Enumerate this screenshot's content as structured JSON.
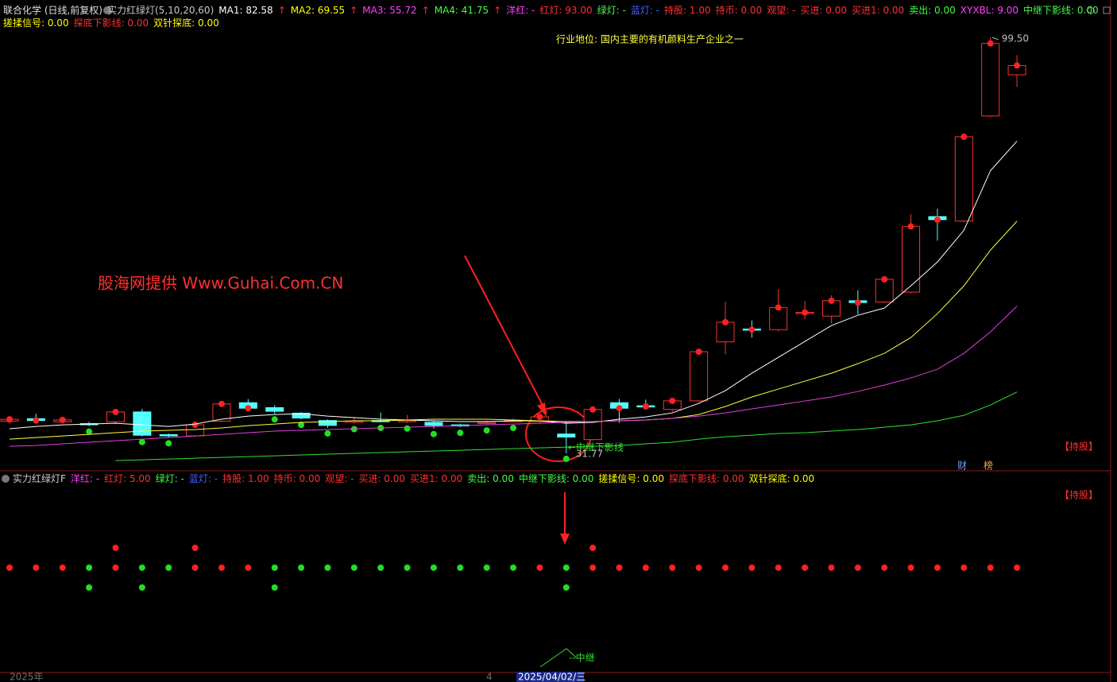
{
  "header": {
    "line1": [
      {
        "text": "联合化学 (日线,前复权)",
        "color": "#e0e0e0"
      },
      {
        "text": "实力红绿灯(5,10,20,60)",
        "color": "#c8c8c8"
      },
      {
        "text": "MA1: 82.58",
        "color": "#ffffff"
      },
      {
        "text": "↑",
        "color": "#ff3030"
      },
      {
        "text": "MA2: 69.55",
        "color": "#ffff00"
      },
      {
        "text": "↑",
        "color": "#ff3030"
      },
      {
        "text": "MA3: 55.72",
        "color": "#ff40ff"
      },
      {
        "text": "↑",
        "color": "#ff3030"
      },
      {
        "text": "MA4: 41.75",
        "color": "#40ff40"
      },
      {
        "text": "↑",
        "color": "#ff3030"
      },
      {
        "text": "洋红: -",
        "color": "#ff40ff"
      },
      {
        "text": "红灯: 93.00",
        "color": "#ff3030"
      },
      {
        "text": "绿灯: -",
        "color": "#40ff40"
      },
      {
        "text": "蓝灯: -",
        "color": "#4060ff"
      },
      {
        "text": "持股: 1.00",
        "color": "#ff3030"
      },
      {
        "text": "持币: 0.00",
        "color": "#ff3030"
      },
      {
        "text": "观望: -",
        "color": "#ff3030"
      },
      {
        "text": "买进: 0.00",
        "color": "#ff3030"
      },
      {
        "text": "买进1: 0.00",
        "color": "#ff3030"
      },
      {
        "text": "卖出: 0.00",
        "color": "#40ff40"
      },
      {
        "text": "XYXBL: 9.00",
        "color": "#ff40ff"
      },
      {
        "text": "中继下影线: 0.00",
        "color": "#40ff40"
      }
    ],
    "line2": [
      {
        "text": "搓揉信号: 0.00",
        "color": "#ffff00"
      },
      {
        "text": "探底下影线: 0.00",
        "color": "#ff3030"
      },
      {
        "text": "双针探底: 0.00",
        "color": "#ffff00"
      }
    ]
  },
  "chart_data": {
    "type": "candlestick",
    "categories": [
      null,
      null,
      null,
      null,
      null,
      null,
      null,
      null,
      null,
      null,
      null,
      null,
      null,
      null,
      null,
      null,
      null,
      null,
      null,
      null,
      null,
      "2025/04/02/三",
      null,
      null,
      null,
      null,
      null,
      null,
      null,
      null,
      null,
      null,
      null,
      null,
      null,
      null,
      null,
      null,
      null
    ],
    "open": [
      37.0,
      37.4,
      36.9,
      36.6,
      36.9,
      38.5,
      34.8,
      34.6,
      37.0,
      40.0,
      39.2,
      38.3,
      37.1,
      36.9,
      37.1,
      37.0,
      36.8,
      36.4,
      36.6,
      37.0,
      36.9,
      34.9,
      34.0,
      40.0,
      39.5,
      38.9,
      40.3,
      49.9,
      52.0,
      51.9,
      54.6,
      54.1,
      56.6,
      56.4,
      58.0,
      70.3,
      69.6,
      86.7,
      93.4
    ],
    "close": [
      37.3,
      37.1,
      37.2,
      36.5,
      38.5,
      34.7,
      34.6,
      36.4,
      39.8,
      39.1,
      38.6,
      37.5,
      36.3,
      37.0,
      37.0,
      37.1,
      36.3,
      36.3,
      36.8,
      37.1,
      37.7,
      34.4,
      38.9,
      39.1,
      39.4,
      40.3,
      48.3,
      53.1,
      51.9,
      55.5,
      54.7,
      56.6,
      56.3,
      60.1,
      68.7,
      69.8,
      83.3,
      98.5,
      94.9
    ],
    "high": [
      37.6,
      38.2,
      37.4,
      36.9,
      38.7,
      39.0,
      35.0,
      37.0,
      39.9,
      40.6,
      39.6,
      38.5,
      37.3,
      37.6,
      38.4,
      38.0,
      37.1,
      36.6,
      37.1,
      37.4,
      38.0,
      37.0,
      39.0,
      40.6,
      40.5,
      40.7,
      48.4,
      56.4,
      53.4,
      58.5,
      56.6,
      57.5,
      58.3,
      60.2,
      70.7,
      71.6,
      83.4,
      99.5,
      96.6
    ],
    "low": [
      36.6,
      36.9,
      36.6,
      36.2,
      36.6,
      34.5,
      34.3,
      34.4,
      36.8,
      38.8,
      38.2,
      37.3,
      35.9,
      36.6,
      36.8,
      36.7,
      35.8,
      36.0,
      36.4,
      36.8,
      36.7,
      31.77,
      33.8,
      36.7,
      39.1,
      38.5,
      40.1,
      47.9,
      50.6,
      51.6,
      53.6,
      52.9,
      54.4,
      56.2,
      57.8,
      66.4,
      69.4,
      86.5,
      91.4
    ],
    "up_color": "#ff3232",
    "down_color": "#54ffff",
    "ylim": [
      29.3,
      100.4
    ],
    "series": [
      {
        "color": "#ffffff",
        "values": [
          35.76,
          36.14,
          36.4,
          36.53,
          36.66,
          36.4,
          36.14,
          36.53,
          37.31,
          37.82,
          38.08,
          38.21,
          37.82,
          37.57,
          37.31,
          37.18,
          37.05,
          36.92,
          36.92,
          37.05,
          37.05,
          36.66,
          36.79,
          37.31,
          37.69,
          38.34,
          39.89,
          41.96,
          44.8,
          47.39,
          49.98,
          52.56,
          54.24,
          55.41,
          59.03,
          62.91,
          68.08,
          77.78,
          82.58
        ]
      },
      {
        "color": "#ffff40",
        "values": [
          34.07,
          34.33,
          34.59,
          34.85,
          35.11,
          35.37,
          35.5,
          35.63,
          35.89,
          36.27,
          36.53,
          36.79,
          36.92,
          37.05,
          37.05,
          37.18,
          37.31,
          37.31,
          37.31,
          37.18,
          37.05,
          36.92,
          36.92,
          37.05,
          37.18,
          37.44,
          38.08,
          39.38,
          40.93,
          42.22,
          43.51,
          44.8,
          46.36,
          48.04,
          50.62,
          54.5,
          59.03,
          64.85,
          69.55
        ]
      },
      {
        "color": "#e040e0",
        "values": [
          32.91,
          33.04,
          33.3,
          33.56,
          33.81,
          34.07,
          34.33,
          34.59,
          34.85,
          35.11,
          35.37,
          35.5,
          35.63,
          35.76,
          35.89,
          36.01,
          36.14,
          36.27,
          36.4,
          36.53,
          36.66,
          36.79,
          36.92,
          37.05,
          37.18,
          37.44,
          37.82,
          38.34,
          38.99,
          39.63,
          40.28,
          40.93,
          41.83,
          42.87,
          44.03,
          45.45,
          48.04,
          51.53,
          55.72
        ]
      },
      {
        "color": "#30e030",
        "values": [
          null,
          null,
          null,
          null,
          30.58,
          30.71,
          30.84,
          30.97,
          31.1,
          31.23,
          31.36,
          31.49,
          31.62,
          31.75,
          31.88,
          32.01,
          32.13,
          32.26,
          32.39,
          32.52,
          32.65,
          32.78,
          32.91,
          33.04,
          33.3,
          33.56,
          34.07,
          34.46,
          34.72,
          34.98,
          35.11,
          35.37,
          35.63,
          36.01,
          36.4,
          37.05,
          37.95,
          39.63,
          41.75
        ]
      }
    ],
    "high_label": "99.50",
    "low_label": "31.77",
    "low_note": "←中继下影线"
  },
  "texts": {
    "industry": "行业地位: 国内主要的有机颜料生产企业之一",
    "watermark": "股海网提供 Www.Guhai.Com.CN",
    "hold_tag": "【持股】",
    "cai": "财",
    "bang": "榜",
    "relay": "--中继",
    "year": "2025年",
    "month": "4"
  },
  "indicator": {
    "title": "实力红绿灯F",
    "items": [
      {
        "text": "洋红: -",
        "color": "#ff40ff"
      },
      {
        "text": "红灯: 5.00",
        "color": "#ff3030"
      },
      {
        "text": "绿灯: -",
        "color": "#40ff40"
      },
      {
        "text": "蓝灯: -",
        "color": "#4060ff"
      },
      {
        "text": "持股: 1.00",
        "color": "#ff3030"
      },
      {
        "text": "持币: 0.00",
        "color": "#ff3030"
      },
      {
        "text": "观望: -",
        "color": "#ff3030"
      },
      {
        "text": "买进: 0.00",
        "color": "#ff3030"
      },
      {
        "text": "买进1: 0.00",
        "color": "#ff3030"
      },
      {
        "text": "卖出: 0.00",
        "color": "#40ff40"
      },
      {
        "text": "中继下影线: 0.00",
        "color": "#40ff40"
      },
      {
        "text": "搓揉信号: 0.00",
        "color": "#ffff00"
      },
      {
        "text": "探底下影线: 0.00",
        "color": "#ff3030"
      },
      {
        "text": "双针探底: 0.00",
        "color": "#ffff00"
      }
    ],
    "hold_tag": "【持股】",
    "upper": [
      null,
      null,
      null,
      null,
      "#ff2020",
      null,
      null,
      "#ff2020",
      null,
      null,
      null,
      null,
      null,
      null,
      null,
      null,
      null,
      null,
      null,
      null,
      null,
      null,
      "#ff2020",
      null,
      null,
      null,
      null,
      null,
      null,
      null,
      null,
      null,
      null,
      null,
      null,
      null,
      null,
      null,
      null
    ],
    "middle": [
      "#ff2020",
      "#ff2020",
      "#ff2020",
      "#20e020",
      "#ff2020",
      "#20e020",
      "#20e020",
      "#ff2020",
      "#ff2020",
      "#ff2020",
      "#20e020",
      "#20e020",
      "#20e020",
      "#20e020",
      "#20e020",
      "#20e020",
      "#20e020",
      "#20e020",
      "#20e020",
      "#20e020",
      "#ff2020",
      "#20e020",
      "#ff2020",
      "#ff2020",
      "#ff2020",
      "#ff2020",
      "#ff2020",
      "#ff2020",
      "#ff2020",
      "#ff2020",
      "#ff2020",
      "#ff2020",
      "#ff2020",
      "#ff2020",
      "#ff2020",
      "#ff2020",
      "#ff2020",
      "#ff2020",
      "#ff2020"
    ],
    "lower": [
      null,
      null,
      null,
      "#20e020",
      null,
      "#20e020",
      null,
      null,
      null,
      null,
      "#20e020",
      null,
      null,
      null,
      null,
      null,
      null,
      null,
      null,
      null,
      null,
      "#20e020",
      null,
      null,
      null,
      null,
      null,
      null,
      null,
      null,
      null,
      null,
      null,
      null,
      null,
      null,
      null,
      null,
      null
    ]
  }
}
